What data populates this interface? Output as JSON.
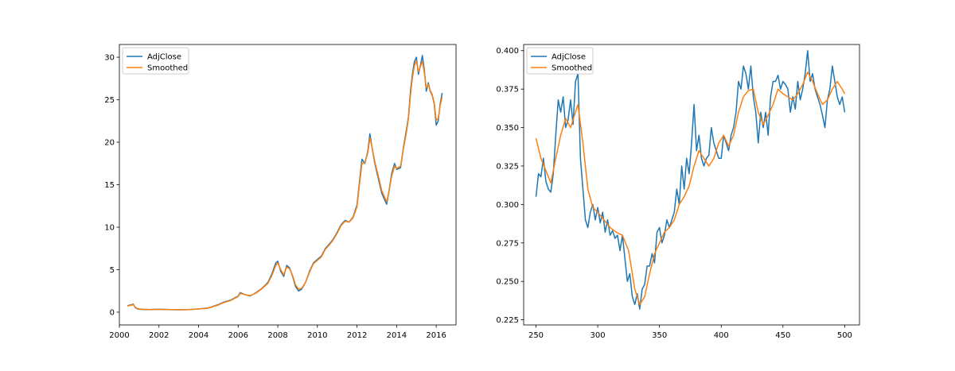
{
  "chart_data": [
    {
      "type": "line",
      "title": "",
      "xlabel": "",
      "ylabel": "",
      "x_axis": "date",
      "xlim": [
        2000.0,
        2017.0
      ],
      "ylim": [
        -1.5,
        31.5
      ],
      "xticks": [
        2000,
        2002,
        2004,
        2006,
        2008,
        2010,
        2012,
        2014,
        2016
      ],
      "xtick_labels": [
        "2000",
        "2002",
        "2004",
        "2006",
        "2008",
        "2010",
        "2012",
        "2014",
        "2016"
      ],
      "yticks": [
        0,
        5,
        10,
        15,
        20,
        25,
        30
      ],
      "ytick_labels": [
        "0",
        "5",
        "10",
        "15",
        "20",
        "25",
        "30"
      ],
      "grid": false,
      "legend": "top-left",
      "series": [
        {
          "name": "AdjClose",
          "color": "#1f77b4",
          "x": [
            2000.4,
            2000.55,
            2000.7,
            2000.8,
            2000.9,
            2001.0,
            2001.2,
            2001.5,
            2002.0,
            2002.5,
            2003.0,
            2003.5,
            2004.0,
            2004.5,
            2005.0,
            2005.3,
            2005.6,
            2006.0,
            2006.1,
            2006.3,
            2006.6,
            2006.9,
            2007.2,
            2007.5,
            2007.7,
            2007.9,
            2008.0,
            2008.15,
            2008.3,
            2008.45,
            2008.6,
            2008.75,
            2008.9,
            2009.05,
            2009.2,
            2009.4,
            2009.6,
            2009.8,
            2010.0,
            2010.2,
            2010.4,
            2010.6,
            2010.8,
            2011.0,
            2011.2,
            2011.4,
            2011.6,
            2011.8,
            2012.0,
            2012.1,
            2012.25,
            2012.4,
            2012.55,
            2012.65,
            2012.75,
            2012.9,
            2013.1,
            2013.25,
            2013.4,
            2013.5,
            2013.6,
            2013.75,
            2013.9,
            2014.0,
            2014.2,
            2014.35,
            2014.5,
            2014.6,
            2014.7,
            2014.8,
            2014.9,
            2015.0,
            2015.1,
            2015.2,
            2015.3,
            2015.4,
            2015.5,
            2015.6,
            2015.7,
            2015.8,
            2015.9,
            2016.0,
            2016.1,
            2016.2,
            2016.3
          ],
          "y": [
            0.75,
            0.85,
            0.95,
            0.55,
            0.4,
            0.35,
            0.32,
            0.3,
            0.35,
            0.3,
            0.28,
            0.3,
            0.38,
            0.5,
            0.9,
            1.2,
            1.4,
            1.9,
            2.3,
            2.1,
            1.9,
            2.3,
            2.8,
            3.5,
            4.5,
            5.8,
            6.0,
            4.8,
            4.2,
            5.5,
            5.2,
            4.2,
            3.0,
            2.5,
            2.7,
            3.5,
            4.8,
            5.8,
            6.2,
            6.6,
            7.5,
            8.0,
            8.6,
            9.4,
            10.3,
            10.8,
            10.6,
            11.2,
            12.6,
            14.8,
            18.0,
            17.5,
            19.0,
            21.0,
            19.5,
            17.5,
            15.5,
            14.0,
            13.2,
            12.7,
            14.0,
            16.3,
            17.5,
            16.8,
            17.0,
            19.5,
            21.5,
            23.0,
            26.0,
            28.0,
            29.5,
            30.0,
            28.0,
            29.0,
            30.2,
            28.5,
            26.0,
            27.0,
            26.0,
            25.5,
            24.5,
            22.0,
            22.5,
            24.5,
            25.8
          ]
        },
        {
          "name": "Smoothed",
          "color": "#ff7f0e",
          "x": [
            2000.4,
            2000.55,
            2000.7,
            2000.8,
            2000.9,
            2001.0,
            2001.2,
            2001.5,
            2002.0,
            2002.5,
            2003.0,
            2003.5,
            2004.0,
            2004.5,
            2005.0,
            2005.3,
            2005.6,
            2006.0,
            2006.1,
            2006.3,
            2006.6,
            2006.9,
            2007.2,
            2007.5,
            2007.7,
            2007.9,
            2008.0,
            2008.15,
            2008.3,
            2008.45,
            2008.6,
            2008.75,
            2008.9,
            2009.05,
            2009.2,
            2009.4,
            2009.6,
            2009.8,
            2010.0,
            2010.2,
            2010.4,
            2010.6,
            2010.8,
            2011.0,
            2011.2,
            2011.4,
            2011.6,
            2011.8,
            2012.0,
            2012.1,
            2012.25,
            2012.4,
            2012.55,
            2012.65,
            2012.75,
            2012.9,
            2013.1,
            2013.25,
            2013.4,
            2013.5,
            2013.6,
            2013.75,
            2013.9,
            2014.0,
            2014.2,
            2014.35,
            2014.5,
            2014.6,
            2014.7,
            2014.8,
            2014.9,
            2015.0,
            2015.1,
            2015.2,
            2015.3,
            2015.4,
            2015.5,
            2015.6,
            2015.7,
            2015.8,
            2015.9,
            2016.0,
            2016.1,
            2016.2,
            2016.3
          ],
          "y": [
            0.72,
            0.8,
            0.88,
            0.6,
            0.45,
            0.38,
            0.33,
            0.31,
            0.34,
            0.31,
            0.29,
            0.3,
            0.37,
            0.48,
            0.85,
            1.15,
            1.35,
            1.85,
            2.2,
            2.1,
            1.95,
            2.25,
            2.75,
            3.4,
            4.3,
            5.5,
            5.8,
            5.0,
            4.4,
            5.3,
            5.1,
            4.3,
            3.2,
            2.7,
            2.8,
            3.5,
            4.7,
            5.7,
            6.1,
            6.5,
            7.4,
            7.9,
            8.5,
            9.3,
            10.2,
            10.7,
            10.6,
            11.1,
            12.4,
            14.5,
            17.5,
            17.6,
            18.8,
            20.5,
            19.5,
            17.7,
            15.8,
            14.3,
            13.5,
            13.0,
            14.0,
            16.0,
            17.2,
            16.9,
            17.2,
            19.3,
            21.2,
            22.8,
            25.5,
            27.6,
            29.0,
            29.6,
            28.3,
            28.9,
            29.5,
            28.2,
            26.4,
            26.8,
            26.1,
            25.6,
            24.6,
            22.6,
            22.8,
            24.3,
            25.3
          ]
        }
      ]
    },
    {
      "type": "line",
      "title": "",
      "xlabel": "",
      "ylabel": "",
      "xlim": [
        240,
        512
      ],
      "ylim": [
        0.2217,
        0.404
      ],
      "xticks": [
        250,
        300,
        350,
        400,
        450,
        500
      ],
      "xtick_labels": [
        "250",
        "300",
        "350",
        "400",
        "450",
        "500"
      ],
      "yticks": [
        0.225,
        0.25,
        0.275,
        0.3,
        0.325,
        0.35,
        0.375,
        0.4
      ],
      "ytick_labels": [
        "0.225",
        "0.250",
        "0.275",
        "0.300",
        "0.325",
        "0.350",
        "0.375",
        "0.400"
      ],
      "grid": false,
      "legend": "top-left",
      "series": [
        {
          "name": "AdjClose",
          "color": "#1f77b4",
          "x": [
            250,
            252,
            254,
            256,
            258,
            260,
            262,
            264,
            266,
            268,
            270,
            272,
            274,
            276,
            278,
            280,
            282,
            284,
            286,
            288,
            290,
            292,
            294,
            296,
            298,
            300,
            302,
            304,
            306,
            308,
            310,
            312,
            314,
            316,
            318,
            320,
            322,
            324,
            326,
            328,
            330,
            332,
            334,
            336,
            338,
            340,
            342,
            344,
            346,
            348,
            350,
            352,
            354,
            356,
            358,
            360,
            362,
            364,
            366,
            368,
            370,
            372,
            374,
            376,
            378,
            380,
            382,
            384,
            386,
            388,
            390,
            392,
            394,
            396,
            398,
            400,
            402,
            404,
            406,
            408,
            410,
            412,
            414,
            416,
            418,
            420,
            422,
            424,
            426,
            428,
            430,
            432,
            434,
            436,
            438,
            440,
            442,
            444,
            446,
            448,
            450,
            452,
            454,
            456,
            458,
            460,
            462,
            464,
            466,
            468,
            470,
            472,
            474,
            476,
            478,
            480,
            482,
            484,
            486,
            488,
            490,
            492,
            494,
            496,
            498,
            500
          ],
          "y": [
            0.305,
            0.32,
            0.318,
            0.33,
            0.315,
            0.31,
            0.308,
            0.32,
            0.345,
            0.368,
            0.36,
            0.37,
            0.35,
            0.355,
            0.368,
            0.352,
            0.38,
            0.385,
            0.33,
            0.31,
            0.29,
            0.285,
            0.295,
            0.3,
            0.29,
            0.298,
            0.288,
            0.295,
            0.282,
            0.29,
            0.28,
            0.283,
            0.278,
            0.28,
            0.27,
            0.28,
            0.265,
            0.25,
            0.255,
            0.24,
            0.235,
            0.242,
            0.232,
            0.245,
            0.248,
            0.26,
            0.26,
            0.268,
            0.262,
            0.282,
            0.285,
            0.275,
            0.28,
            0.29,
            0.285,
            0.29,
            0.295,
            0.31,
            0.3,
            0.325,
            0.31,
            0.33,
            0.32,
            0.34,
            0.365,
            0.335,
            0.345,
            0.33,
            0.325,
            0.33,
            0.332,
            0.35,
            0.34,
            0.335,
            0.33,
            0.33,
            0.345,
            0.34,
            0.335,
            0.345,
            0.35,
            0.36,
            0.38,
            0.375,
            0.39,
            0.385,
            0.375,
            0.39,
            0.37,
            0.36,
            0.34,
            0.36,
            0.35,
            0.36,
            0.345,
            0.37,
            0.38,
            0.38,
            0.384,
            0.375,
            0.38,
            0.378,
            0.375,
            0.36,
            0.37,
            0.362,
            0.38,
            0.368,
            0.375,
            0.385,
            0.4,
            0.38,
            0.385,
            0.375,
            0.37,
            0.365,
            0.358,
            0.35,
            0.368,
            0.375,
            0.39,
            0.38,
            0.37,
            0.365,
            0.37,
            0.36
          ]
        },
        {
          "name": "Smoothed",
          "color": "#ff7f0e",
          "x": [
            250,
            254,
            258,
            262,
            266,
            270,
            274,
            278,
            282,
            284,
            288,
            292,
            296,
            300,
            305,
            310,
            315,
            320,
            325,
            330,
            334,
            338,
            342,
            346,
            350,
            354,
            358,
            362,
            366,
            370,
            374,
            378,
            382,
            386,
            390,
            394,
            398,
            402,
            406,
            410,
            414,
            418,
            422,
            426,
            430,
            434,
            438,
            442,
            446,
            450,
            454,
            458,
            462,
            466,
            470,
            474,
            478,
            482,
            486,
            490,
            494,
            498,
            500
          ],
          "y": [
            0.343,
            0.33,
            0.322,
            0.314,
            0.33,
            0.345,
            0.356,
            0.35,
            0.36,
            0.365,
            0.34,
            0.31,
            0.298,
            0.295,
            0.29,
            0.285,
            0.282,
            0.28,
            0.27,
            0.245,
            0.235,
            0.24,
            0.255,
            0.268,
            0.275,
            0.282,
            0.285,
            0.29,
            0.3,
            0.305,
            0.312,
            0.325,
            0.335,
            0.33,
            0.325,
            0.33,
            0.34,
            0.345,
            0.338,
            0.345,
            0.36,
            0.37,
            0.374,
            0.375,
            0.36,
            0.352,
            0.358,
            0.365,
            0.375,
            0.372,
            0.37,
            0.368,
            0.372,
            0.378,
            0.386,
            0.38,
            0.372,
            0.365,
            0.368,
            0.375,
            0.38,
            0.375,
            0.372
          ]
        }
      ]
    }
  ]
}
